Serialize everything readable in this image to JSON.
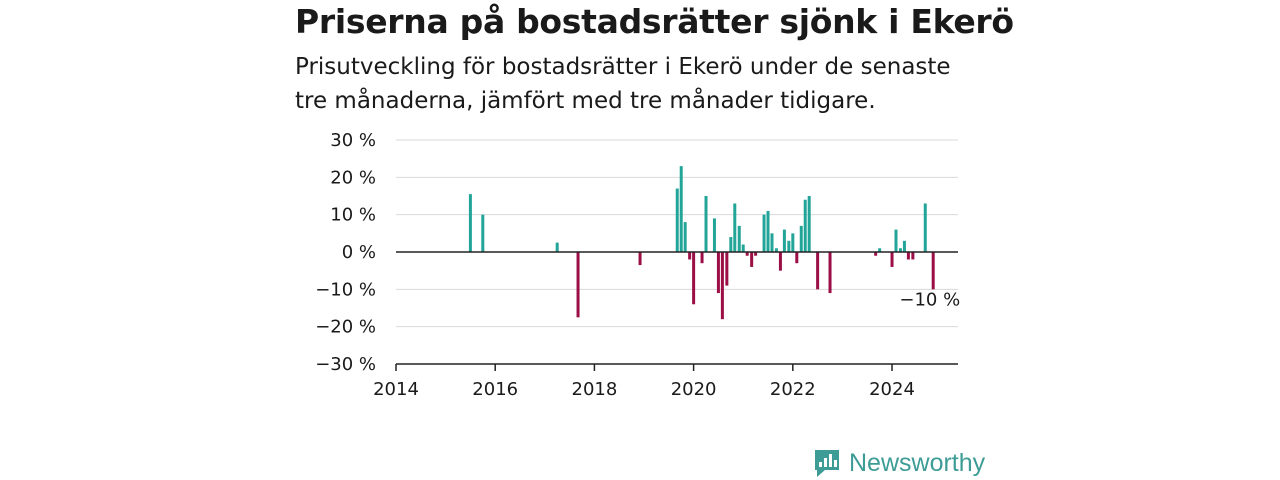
{
  "title": "Priserna på bostadsrätter sjönk i Ekerö",
  "subtitle": "Prisutveckling för bostadsrätter i Ekerö under de senaste tre månaderna, jämfört med tre månader tidigare.",
  "brand": {
    "name": "Newsworthy",
    "icon": "newsworthy-logo-icon",
    "color": "#3d9c96"
  },
  "chart_data": {
    "type": "bar",
    "title": "",
    "xlabel": "",
    "ylabel": "",
    "xlim": [
      2014,
      2025.33
    ],
    "ylim": [
      -30,
      30
    ],
    "x_ticks": [
      {
        "value": 2014,
        "label": "2014"
      },
      {
        "value": 2016,
        "label": "2016"
      },
      {
        "value": 2018,
        "label": "2018"
      },
      {
        "value": 2020,
        "label": "2020"
      },
      {
        "value": 2022,
        "label": "2022"
      },
      {
        "value": 2024,
        "label": "2024"
      }
    ],
    "y_ticks": [
      {
        "value": 30,
        "label": "30 %"
      },
      {
        "value": 20,
        "label": "20 %"
      },
      {
        "value": 10,
        "label": "10 %"
      },
      {
        "value": 0,
        "label": "0 %"
      },
      {
        "value": -10,
        "label": "−10 %"
      },
      {
        "value": -20,
        "label": "−20 %"
      },
      {
        "value": -30,
        "label": "−30 %"
      }
    ],
    "grid": true,
    "colors": {
      "positive": "#22a598",
      "negative": "#9b0f46"
    },
    "annotation": {
      "text": "−10 %",
      "x": 2024.83,
      "y": -10
    },
    "points": [
      {
        "x": 2015.5,
        "y": 15.5
      },
      {
        "x": 2015.75,
        "y": 10
      },
      {
        "x": 2017.25,
        "y": 2.5
      },
      {
        "x": 2017.67,
        "y": -17.5
      },
      {
        "x": 2018.92,
        "y": -3.5
      },
      {
        "x": 2019.67,
        "y": 17
      },
      {
        "x": 2019.75,
        "y": 23
      },
      {
        "x": 2019.83,
        "y": 8
      },
      {
        "x": 2019.92,
        "y": -2
      },
      {
        "x": 2020.0,
        "y": -14
      },
      {
        "x": 2020.17,
        "y": -3
      },
      {
        "x": 2020.25,
        "y": 15
      },
      {
        "x": 2020.42,
        "y": 9
      },
      {
        "x": 2020.5,
        "y": -11
      },
      {
        "x": 2020.58,
        "y": -18
      },
      {
        "x": 2020.67,
        "y": -9
      },
      {
        "x": 2020.75,
        "y": 4
      },
      {
        "x": 2020.83,
        "y": 13
      },
      {
        "x": 2020.92,
        "y": 7
      },
      {
        "x": 2021.0,
        "y": 2
      },
      {
        "x": 2021.08,
        "y": -1
      },
      {
        "x": 2021.17,
        "y": -4
      },
      {
        "x": 2021.25,
        "y": -1
      },
      {
        "x": 2021.42,
        "y": 10
      },
      {
        "x": 2021.5,
        "y": 11
      },
      {
        "x": 2021.58,
        "y": 5
      },
      {
        "x": 2021.67,
        "y": 1
      },
      {
        "x": 2021.75,
        "y": -5
      },
      {
        "x": 2021.83,
        "y": 6
      },
      {
        "x": 2021.92,
        "y": 3
      },
      {
        "x": 2022.0,
        "y": 5
      },
      {
        "x": 2022.08,
        "y": -3
      },
      {
        "x": 2022.17,
        "y": 7
      },
      {
        "x": 2022.25,
        "y": 14
      },
      {
        "x": 2022.33,
        "y": 15
      },
      {
        "x": 2022.5,
        "y": -10
      },
      {
        "x": 2022.75,
        "y": -11
      },
      {
        "x": 2023.67,
        "y": -1
      },
      {
        "x": 2023.75,
        "y": 1
      },
      {
        "x": 2024.0,
        "y": -4
      },
      {
        "x": 2024.08,
        "y": 6
      },
      {
        "x": 2024.17,
        "y": 1
      },
      {
        "x": 2024.25,
        "y": 3
      },
      {
        "x": 2024.33,
        "y": -2
      },
      {
        "x": 2024.42,
        "y": -2
      },
      {
        "x": 2024.67,
        "y": 13
      },
      {
        "x": 2024.83,
        "y": -10
      }
    ]
  }
}
